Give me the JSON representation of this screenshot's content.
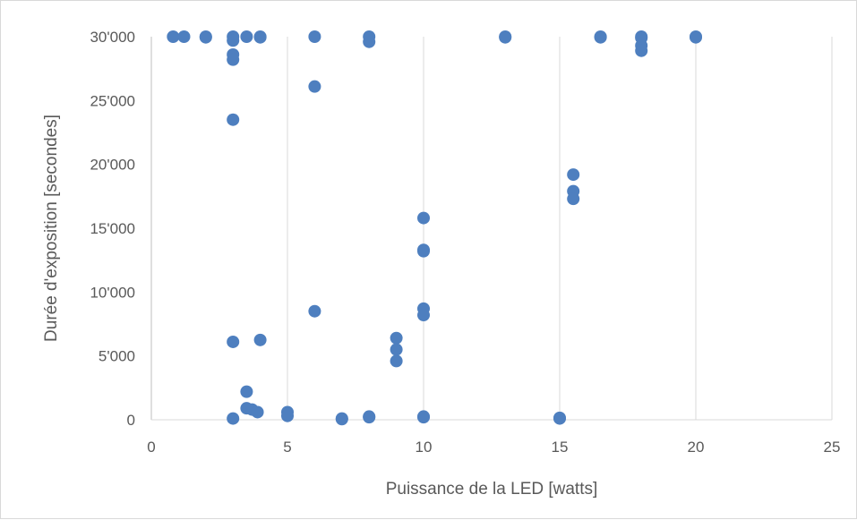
{
  "chart_data": {
    "type": "scatter",
    "title": "",
    "xlabel": "Puissance de la LED [watts]",
    "ylabel": "Durée d'exposition [secondes]",
    "xlim": [
      0,
      25
    ],
    "ylim": [
      0,
      30000
    ],
    "x_ticks": [
      0,
      5,
      10,
      15,
      20,
      25
    ],
    "x_tick_labels": [
      "0",
      "5",
      "10",
      "15",
      "20",
      "25"
    ],
    "y_ticks": [
      0,
      5000,
      10000,
      15000,
      20000,
      25000,
      30000
    ],
    "y_tick_labels": [
      "0",
      "5'000",
      "10'000",
      "15'000",
      "20'000",
      "25'000",
      "30'000"
    ],
    "grid": "vertical",
    "legend": "none",
    "marker_color": "#4e7fbf",
    "series": [
      {
        "points": [
          [
            0.8,
            30000
          ],
          [
            1.2,
            30000
          ],
          [
            2,
            30000
          ],
          [
            2,
            29950
          ],
          [
            3,
            30000
          ],
          [
            3,
            29700
          ],
          [
            3,
            28600
          ],
          [
            3,
            28200
          ],
          [
            3,
            23500
          ],
          [
            3,
            6100
          ],
          [
            3,
            100
          ],
          [
            3.5,
            30000
          ],
          [
            3.5,
            2200
          ],
          [
            3.5,
            900
          ],
          [
            3.7,
            800
          ],
          [
            3.9,
            600
          ],
          [
            4,
            30000
          ],
          [
            4,
            29950
          ],
          [
            4,
            6250
          ],
          [
            5,
            600
          ],
          [
            5,
            300
          ],
          [
            6,
            30000
          ],
          [
            6,
            26100
          ],
          [
            6,
            8500
          ],
          [
            7,
            100
          ],
          [
            7,
            50
          ],
          [
            8,
            30000
          ],
          [
            8,
            29600
          ],
          [
            8,
            250
          ],
          [
            8,
            200
          ],
          [
            9,
            6400
          ],
          [
            9,
            5500
          ],
          [
            9,
            4600
          ],
          [
            10,
            15800
          ],
          [
            10,
            13300
          ],
          [
            10,
            13200
          ],
          [
            10,
            8700
          ],
          [
            10,
            8200
          ],
          [
            10,
            250
          ],
          [
            10,
            200
          ],
          [
            13,
            30000
          ],
          [
            13,
            29950
          ],
          [
            15,
            150
          ],
          [
            15,
            100
          ],
          [
            15.5,
            19200
          ],
          [
            15.5,
            17900
          ],
          [
            15.5,
            17300
          ],
          [
            16.5,
            30000
          ],
          [
            16.5,
            29950
          ],
          [
            18,
            30000
          ],
          [
            18,
            29900
          ],
          [
            18,
            29300
          ],
          [
            18,
            28900
          ],
          [
            20,
            30000
          ],
          [
            20,
            29950
          ]
        ]
      }
    ]
  }
}
